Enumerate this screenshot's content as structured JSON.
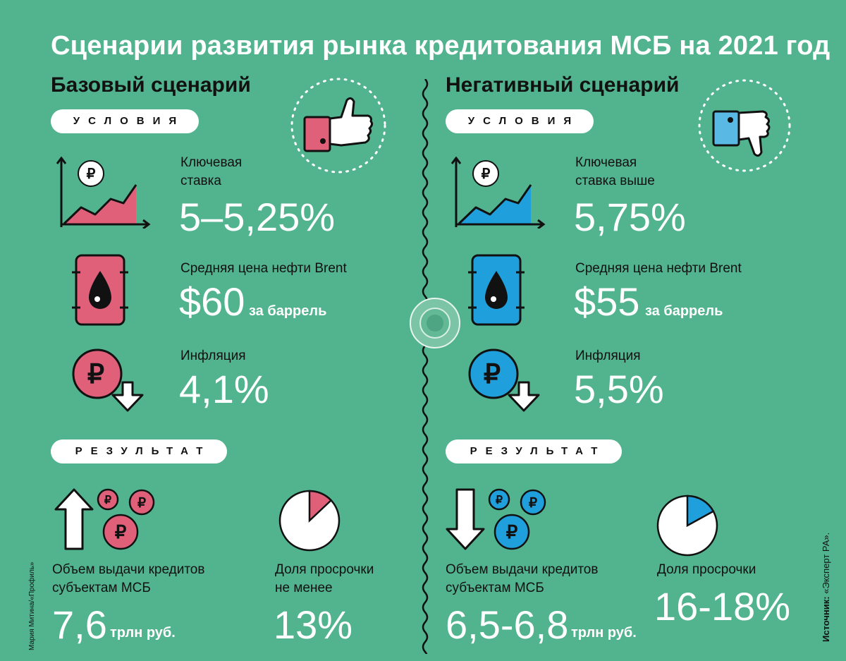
{
  "title": "Сценарии развития рынка кредитования МСБ на 2021 год",
  "base": {
    "heading": "Базовый сценарий",
    "conditions_label": "УСЛОВИЯ",
    "key_rate_label": "Ключевая ставка",
    "key_rate_value": "5–5,25%",
    "oil_label": "Средняя цена нефти Brent",
    "oil_value": "$60",
    "oil_unit": "за баррель",
    "inflation_label": "Инфляция",
    "inflation_value": "4,1%",
    "result_label": "РЕЗУЛЬТАТ",
    "loans_label_1": "Объем выдачи кредитов",
    "loans_label_2": "субъектам МСБ",
    "loans_value": "7,6",
    "loans_unit": "трлн руб.",
    "overdue_label_1": "Доля просрочки",
    "overdue_label_2": "не менее",
    "overdue_value": "13%",
    "overdue_share": 0.13
  },
  "negative": {
    "heading": "Негативный сценарий",
    "conditions_label": "УСЛОВИЯ",
    "key_rate_label_1": "Ключевая",
    "key_rate_label_2": "ставка выше",
    "key_rate_value": "5,75%",
    "oil_label": "Средняя цена нефти Brent",
    "oil_value": "$55",
    "oil_unit": "за баррель",
    "inflation_label": "Инфляция",
    "inflation_value": "5,5%",
    "result_label": "РЕЗУЛЬТАТ",
    "loans_label_1": "Объем выдачи кредитов",
    "loans_label_2": "субъектам МСБ",
    "loans_value": "6,5-6,8",
    "loans_unit": "трлн руб.",
    "overdue_label_1": "Доля просрочки",
    "overdue_value": "16-18%",
    "overdue_share": 0.17
  },
  "base_key_rate_label_1": "Ключевая",
  "base_key_rate_label_2": "ставка",
  "credit": "Мария Митина/«Профиль»",
  "source_label": "Источник:",
  "source_value": "«Эксперт РА».",
  "icons": {
    "base": [
      "thumbs-up-icon",
      "chart-icon",
      "oil-barrel-icon",
      "ruble-down-icon",
      "arrow-up-icon",
      "ruble-coins-icon",
      "pie-icon"
    ],
    "negative": [
      "thumbs-down-icon",
      "chart-icon",
      "oil-barrel-icon",
      "ruble-down-icon",
      "arrow-down-icon",
      "ruble-coins-icon",
      "pie-icon"
    ]
  },
  "colors": {
    "background": "#52b38f",
    "base_accent": "#e0607a",
    "negative_accent": "#1fa0dc",
    "ink": "#111111"
  }
}
